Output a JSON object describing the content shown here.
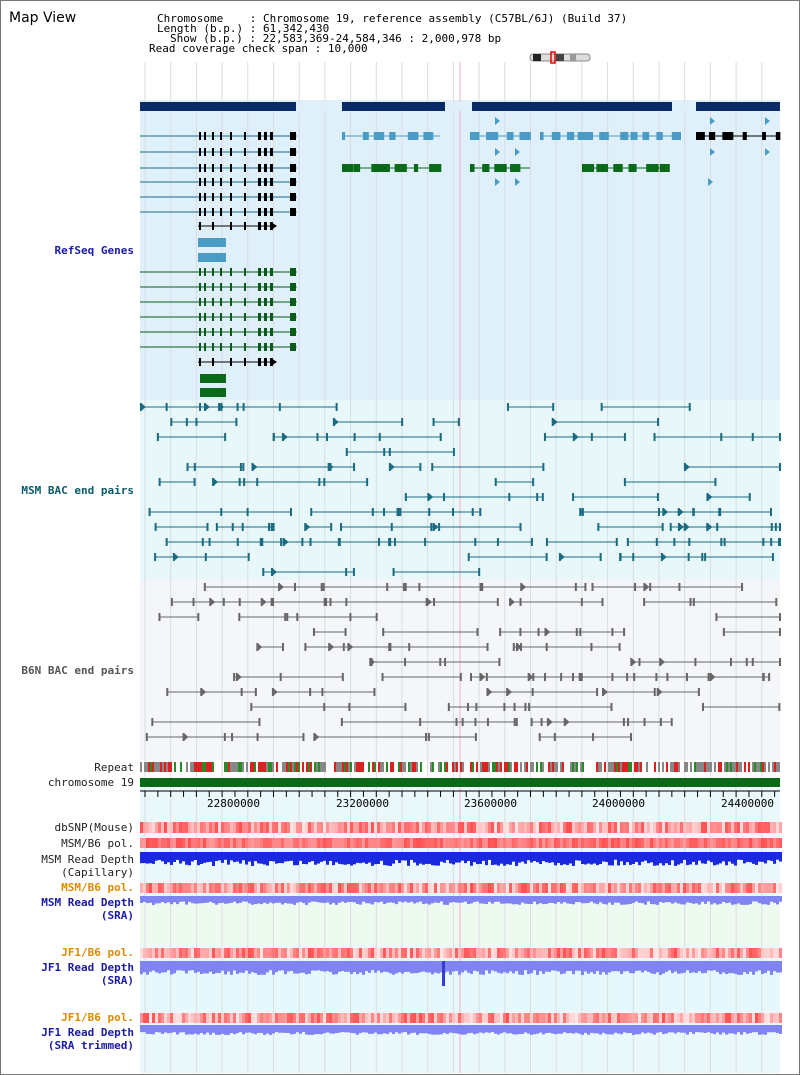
{
  "title": "Map View",
  "info": {
    "chromosome_key": "Chromosome    ",
    "chromosome_val": "Chromosome 19, reference assembly (C57BL/6J) (Build 37)",
    "length_key": "Length (b.p.)",
    "length_val": "61,342,430",
    "show_key": "Show (b.p.)",
    "show_val": "22,583,369-24,584,346 : 2,000,978 bp",
    "coverage_key": "Read coverage check span",
    "coverage_val": "10,000"
  },
  "tracks": {
    "refseq": "RefSeq Genes",
    "msm_bac": "MSM BAC end pairs",
    "b6n_bac": "B6N BAC end pairs",
    "repeat": "Repeat",
    "chromosome": "chromosome 19",
    "dbsnp": "dbSNP(Mouse)",
    "msm_b6_pol_1": "MSM/B6 pol.",
    "msm_read_depth_cap": "MSM Read Depth\n(Capillary)",
    "msm_b6_pol_2": "MSM/B6 pol.",
    "msm_read_depth_sra": "MSM Read Depth\n(SRA)",
    "jf1_b6_pol_1": "JF1/B6 pol.",
    "jf1_read_depth_sra": "JF1 Read Depth\n(SRA)",
    "jf1_b6_pol_2": "JF1/B6 pol.",
    "jf1_read_depth_trim": "JF1 Read Depth\n(SRA trimmed)"
  },
  "axis": {
    "ticks": [
      "22800000",
      "23200000",
      "23600000",
      "24000000",
      "24400000"
    ]
  },
  "colors": {
    "refseq_bg": "#dff0fa",
    "msm_bg": "#e8f8fa",
    "b6n_bg": "#f4f6fa",
    "gene_dark": "#0a2a66",
    "gene_mid": "#4a9cc4",
    "gene_green": "#0a6a1a",
    "chromosome": "#0a6a1a",
    "depth_blue": "#1a28e0",
    "depth_light": "#7f84f0"
  }
}
